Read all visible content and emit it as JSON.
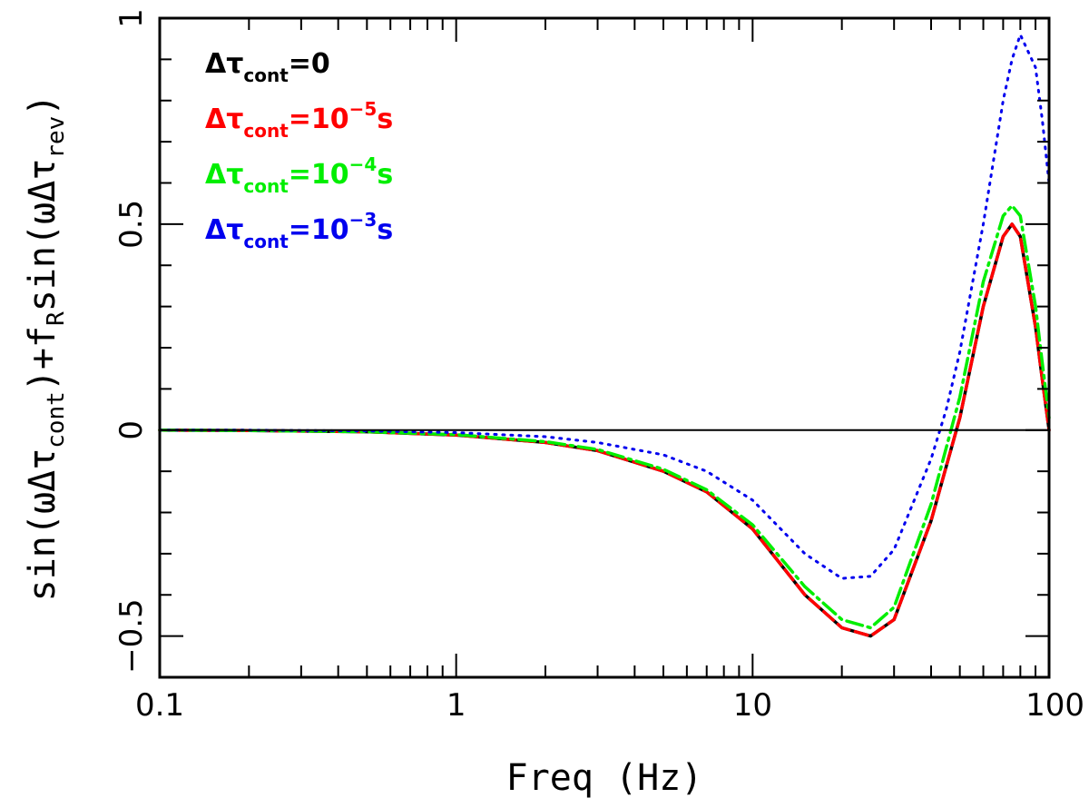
{
  "chart_data": {
    "type": "line",
    "title": "",
    "xlabel": "Freq (Hz)",
    "ylabel": {
      "parts": [
        "sin(ωΔτ",
        "cont",
        ")+f",
        "R",
        "sin(ωΔτ",
        "rev",
        ")"
      ]
    },
    "xscale": "log",
    "xlim": [
      0.1,
      100
    ],
    "ylim": [
      -0.6,
      1.0
    ],
    "x_ticks": [
      {
        "value": 0.1,
        "label": "0.1"
      },
      {
        "value": 1,
        "label": "1"
      },
      {
        "value": 10,
        "label": "10"
      },
      {
        "value": 100,
        "label": "100"
      }
    ],
    "y_ticks": [
      {
        "value": -0.5,
        "label": "−0.5"
      },
      {
        "value": 0,
        "label": "0"
      },
      {
        "value": 0.5,
        "label": "0.5"
      },
      {
        "value": 1,
        "label": "1"
      }
    ],
    "reference_line": {
      "y": 0,
      "color": "#000000"
    },
    "legend_position": "top-left",
    "series": [
      {
        "name": "Δτcont=0",
        "legend": {
          "main": "Δτ",
          "sub": "cont",
          "rest": "=0",
          "sup": "",
          "unit": ""
        },
        "color": "#000000",
        "style": "solid",
        "x": [
          0.1,
          0.2,
          0.5,
          1,
          2,
          3,
          5,
          7,
          10,
          15,
          20,
          25,
          30,
          40,
          50,
          60,
          70,
          75,
          80,
          90,
          95,
          100
        ],
        "y": [
          0,
          -0.001,
          -0.004,
          -0.012,
          -0.03,
          -0.05,
          -0.1,
          -0.15,
          -0.24,
          -0.4,
          -0.48,
          -0.5,
          -0.46,
          -0.22,
          0.03,
          0.3,
          0.47,
          0.5,
          0.47,
          0.25,
          0.12,
          0.0
        ]
      },
      {
        "name": "Δτcont=10^-5 s",
        "legend": {
          "main": "Δτ",
          "sub": "cont",
          "rest": "=10",
          "sup": "−5",
          "unit": "s"
        },
        "color": "#ff0000",
        "style": "dashed",
        "x": [
          0.1,
          0.2,
          0.5,
          1,
          2,
          3,
          5,
          7,
          10,
          15,
          20,
          25,
          30,
          40,
          50,
          60,
          70,
          75,
          80,
          90,
          95,
          100
        ],
        "y": [
          0,
          -0.001,
          -0.004,
          -0.012,
          -0.03,
          -0.05,
          -0.1,
          -0.15,
          -0.24,
          -0.4,
          -0.48,
          -0.5,
          -0.46,
          -0.22,
          0.03,
          0.3,
          0.47,
          0.5,
          0.47,
          0.25,
          0.12,
          0.0
        ]
      },
      {
        "name": "Δτcont=10^-4 s",
        "legend": {
          "main": "Δτ",
          "sub": "cont",
          "rest": "=10",
          "sup": "−4",
          "unit": "s"
        },
        "color": "#00ee00",
        "style": "dashdot",
        "x": [
          0.1,
          0.2,
          0.5,
          1,
          2,
          3,
          5,
          7,
          10,
          15,
          20,
          25,
          30,
          40,
          50,
          60,
          70,
          75,
          80,
          90,
          95,
          100
        ],
        "y": [
          0,
          -0.001,
          -0.004,
          -0.011,
          -0.028,
          -0.047,
          -0.095,
          -0.145,
          -0.23,
          -0.38,
          -0.46,
          -0.48,
          -0.43,
          -0.18,
          0.08,
          0.36,
          0.52,
          0.545,
          0.52,
          0.3,
          0.16,
          0.03
        ]
      },
      {
        "name": "Δτcont=10^-3 s",
        "legend": {
          "main": "Δτ",
          "sub": "cont",
          "rest": "=10",
          "sup": "−3",
          "unit": "s"
        },
        "color": "#0000ee",
        "style": "dotted",
        "x": [
          0.1,
          0.2,
          0.5,
          1,
          2,
          3,
          5,
          7,
          10,
          15,
          20,
          25,
          30,
          40,
          45,
          50,
          60,
          70,
          75,
          80,
          90,
          95,
          100
        ],
        "y": [
          0,
          0.0,
          -0.002,
          -0.006,
          -0.016,
          -0.03,
          -0.06,
          -0.1,
          -0.17,
          -0.3,
          -0.36,
          -0.355,
          -0.29,
          -0.07,
          0.05,
          0.19,
          0.5,
          0.8,
          0.9,
          0.96,
          0.88,
          0.75,
          0.6
        ]
      }
    ]
  }
}
